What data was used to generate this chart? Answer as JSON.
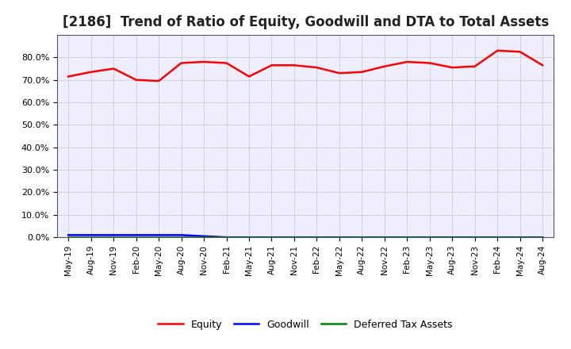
{
  "title": "[2186]  Trend of Ratio of Equity, Goodwill and DTA to Total Assets",
  "x_labels": [
    "May-19",
    "Aug-19",
    "Nov-19",
    "Feb-20",
    "May-20",
    "Aug-20",
    "Nov-20",
    "Feb-21",
    "May-21",
    "Aug-21",
    "Nov-21",
    "Feb-22",
    "May-22",
    "Aug-22",
    "Nov-22",
    "Feb-23",
    "May-23",
    "Aug-23",
    "Nov-23",
    "Feb-24",
    "May-24",
    "Aug-24"
  ],
  "equity": [
    71.5,
    73.5,
    75.0,
    70.0,
    69.5,
    77.5,
    78.0,
    77.5,
    71.5,
    76.5,
    76.5,
    75.5,
    73.0,
    73.5,
    76.0,
    78.0,
    77.5,
    75.5,
    76.0,
    83.0,
    82.5,
    76.5
  ],
  "goodwill": [
    1.0,
    1.0,
    1.0,
    1.0,
    1.0,
    1.0,
    0.5,
    0.0,
    0.0,
    0.0,
    0.0,
    0.0,
    0.0,
    0.0,
    0.0,
    0.0,
    0.0,
    0.0,
    0.0,
    0.0,
    0.0,
    0.0
  ],
  "dta": [
    0.1,
    0.1,
    0.1,
    0.1,
    0.1,
    0.1,
    0.1,
    0.1,
    0.1,
    0.1,
    0.1,
    0.1,
    0.1,
    0.1,
    0.1,
    0.1,
    0.1,
    0.1,
    0.1,
    0.1,
    0.1,
    0.1
  ],
  "equity_color": "#FF0000",
  "goodwill_color": "#0000FF",
  "dta_color": "#008000",
  "ylim": [
    0,
    90
  ],
  "yticks": [
    0,
    10,
    20,
    30,
    40,
    50,
    60,
    70,
    80
  ],
  "ytick_labels": [
    "0.0%",
    "10.0%",
    "20.0%",
    "30.0%",
    "40.0%",
    "50.0%",
    "60.0%",
    "70.0%",
    "80.0%"
  ],
  "background_color": "#FFFFFF",
  "plot_bg_color": "#EEEEFF",
  "grid_color": "#999999",
  "legend_labels": [
    "Equity",
    "Goodwill",
    "Deferred Tax Assets"
  ],
  "title_fontsize": 12,
  "line_width": 1.8
}
